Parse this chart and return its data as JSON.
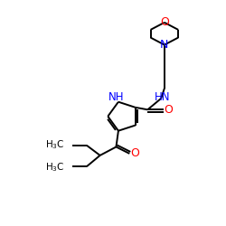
{
  "bg_color": "#ffffff",
  "bond_color": "#000000",
  "N_color": "#0000ff",
  "O_color": "#ff0000",
  "font_size": 7.5,
  "bond_width": 1.4,
  "figsize": [
    2.5,
    2.5
  ],
  "dpi": 100,
  "xlim": [
    0,
    10
  ],
  "ylim": [
    0,
    10
  ]
}
